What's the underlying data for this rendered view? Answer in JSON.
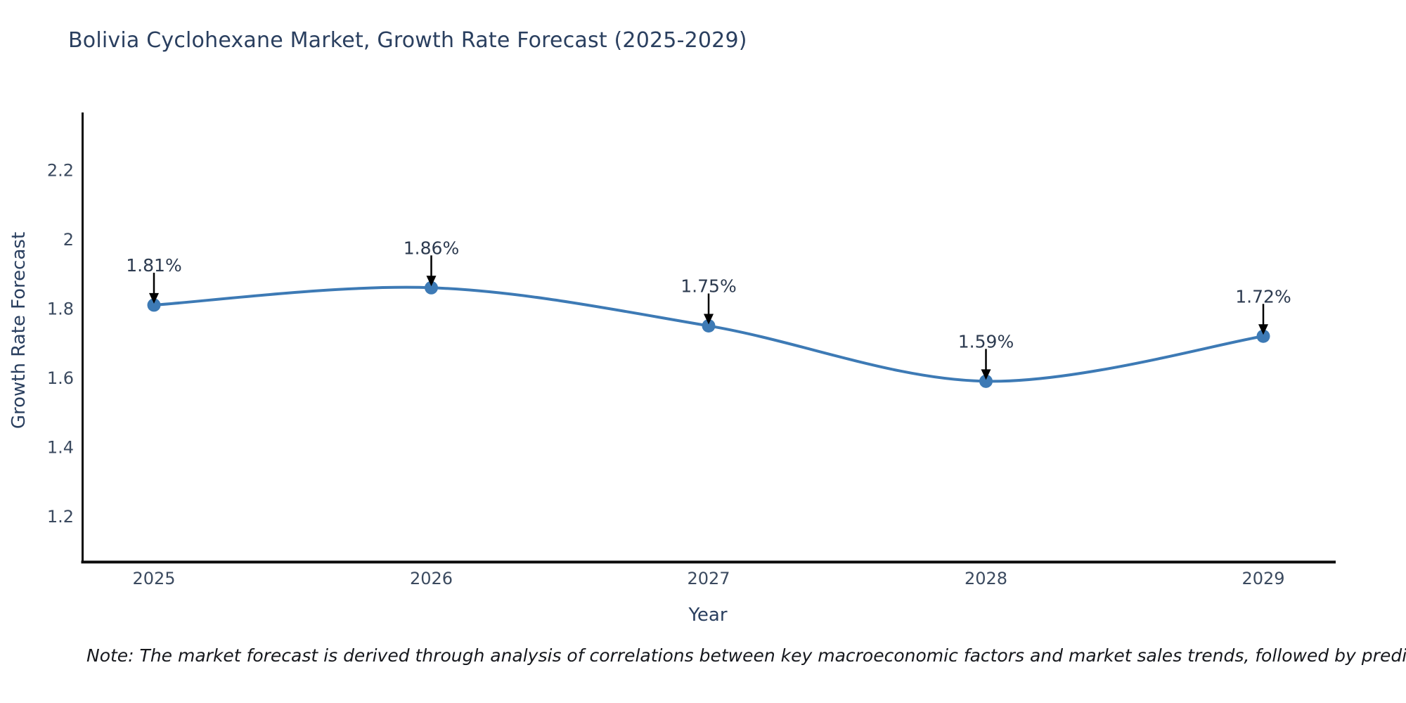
{
  "header": {
    "title": "Bolivia Cyclohexane Market, Growth Rate Forecast (2025-2029)"
  },
  "footer": {
    "note": "Note: The market forecast is derived through analysis of correlations between key macroeconomic factors and market sales trends, followed by predictive modeling to project future sales based on historical market performance."
  },
  "chart_data": {
    "type": "line",
    "title": "Bolivia Cyclohexane Market, Growth Rate Forecast (2025-2029)",
    "xlabel": "Year",
    "ylabel": "Growth Rate Forecast",
    "x": [
      "2025",
      "2026",
      "2027",
      "2028",
      "2029"
    ],
    "series": [
      {
        "name": "Growth Rate Forecast",
        "values": [
          1.81,
          1.86,
          1.75,
          1.59,
          1.72
        ],
        "point_labels": [
          "1.81%",
          "1.86%",
          "1.75%",
          "1.59%",
          "1.72%"
        ]
      }
    ],
    "y_ticks": [
      1.2,
      1.4,
      1.6,
      1.8,
      2,
      2.2
    ],
    "y_tick_labels": [
      "1.2",
      "1.4",
      "1.6",
      "1.8",
      "2",
      "2.2"
    ],
    "ylim": [
      1.069,
      2.366
    ],
    "grid": false,
    "legend": "none",
    "line_style": "spline",
    "markers": true,
    "annotations": "value labels with down arrows above each point",
    "colors": {
      "line": "#3d7ab5",
      "marker": "#3d7ab5",
      "axis_line": "#0b0b0b",
      "tick_text": "#3b4a5f",
      "title_text": "#2a3f5f",
      "annotation_text": "#2c3a4f",
      "annotation_arrow": "#000000",
      "note_text": "#16181d",
      "background": "#ffffff"
    }
  }
}
